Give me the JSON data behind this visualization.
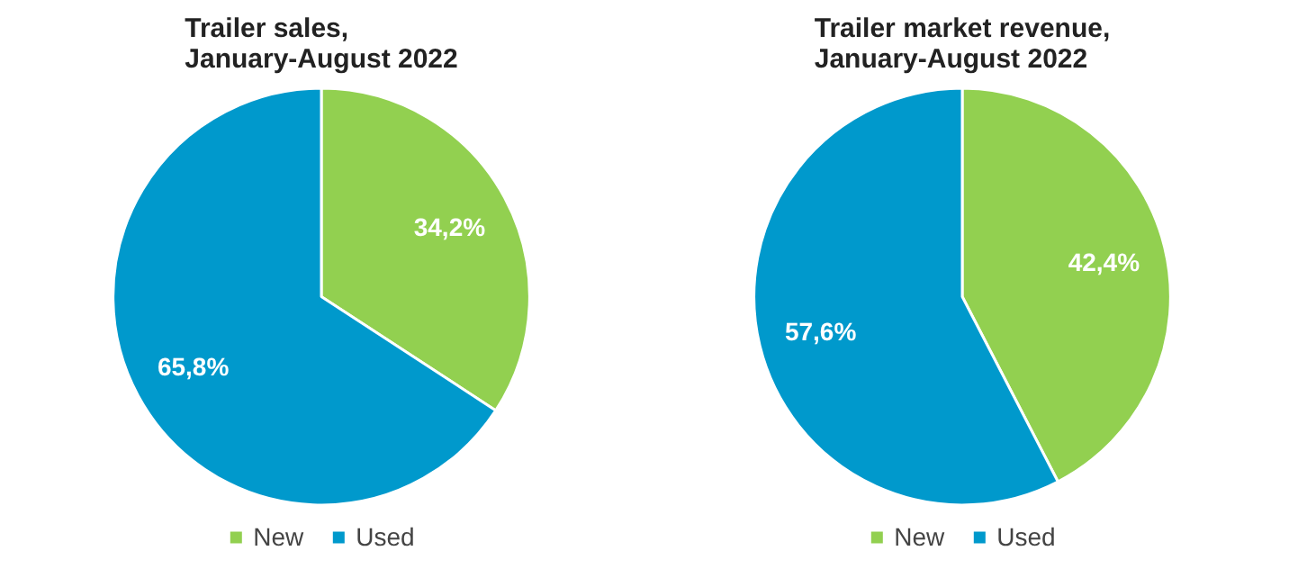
{
  "chart_data": [
    {
      "type": "pie",
      "title": "Trailer sales,\nJanuary-August 2022",
      "categories": [
        "New",
        "Used"
      ],
      "values": [
        34.2,
        65.8
      ],
      "colors": [
        "#92d050",
        "#0099cc"
      ],
      "value_labels": [
        "34,2%",
        "65,8%"
      ],
      "legend": "bottom"
    },
    {
      "type": "pie",
      "title": "Trailer market revenue,\nJanuary-August 2022",
      "categories": [
        "New",
        "Used"
      ],
      "values": [
        42.4,
        57.6
      ],
      "colors": [
        "#92d050",
        "#0099cc"
      ],
      "value_labels": [
        "42,4%",
        "57,6%"
      ],
      "legend": "bottom"
    }
  ]
}
